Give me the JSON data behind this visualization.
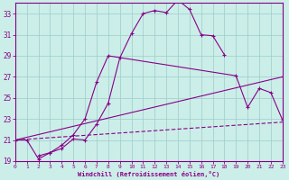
{
  "background_color": "#cceee8",
  "grid_color": "#99cccc",
  "line_color": "#880088",
  "xlim": [
    0,
    23
  ],
  "ylim": [
    19,
    34
  ],
  "ytick_vals": [
    19,
    21,
    23,
    25,
    27,
    29,
    31,
    33
  ],
  "xtick_vals": [
    0,
    1,
    2,
    3,
    4,
    5,
    6,
    7,
    8,
    9,
    10,
    11,
    12,
    13,
    14,
    15,
    16,
    17,
    18,
    19,
    20,
    21,
    22,
    23
  ],
  "xlabel": "Windchill (Refroidissement éolien,°C)",
  "curve1_x": [
    0,
    1,
    2,
    3,
    4,
    5,
    6,
    7,
    8,
    9,
    10,
    11,
    12,
    13,
    14,
    15,
    16,
    17,
    18
  ],
  "curve1_y": [
    21.0,
    21.0,
    19.2,
    19.8,
    20.2,
    21.1,
    21.0,
    22.5,
    24.5,
    28.8,
    31.1,
    33.0,
    33.3,
    33.1,
    34.3,
    33.4,
    31.0,
    30.9,
    29.1
  ],
  "curve2_x": [
    2,
    3,
    4,
    5,
    6,
    7,
    8,
    19,
    20,
    21,
    22,
    23
  ],
  "curve2_y": [
    19.5,
    19.8,
    20.5,
    21.5,
    23.0,
    26.5,
    29.0,
    27.1,
    24.1,
    25.9,
    25.5,
    22.9
  ],
  "curve3_x": [
    0,
    23
  ],
  "curve3_y": [
    21.0,
    27.0
  ],
  "curve4_x": [
    0,
    23
  ],
  "curve4_y": [
    21.0,
    22.7
  ]
}
